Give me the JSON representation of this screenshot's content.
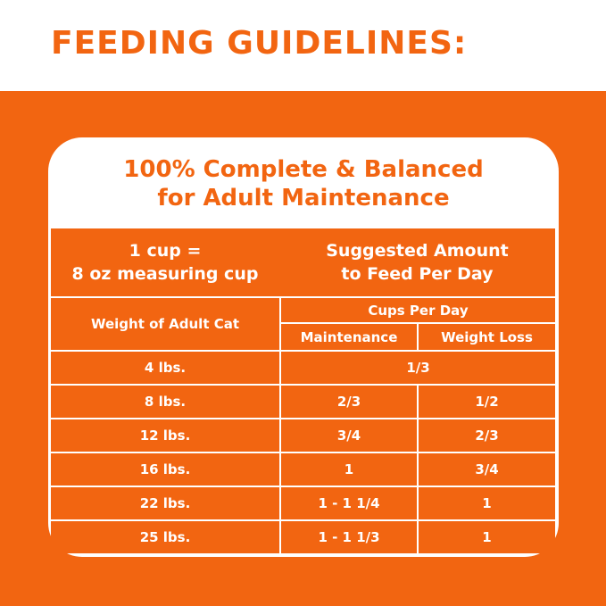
{
  "title": "FEEDING GUIDELINES:",
  "subtitle": {
    "line1": "100% Complete & Balanced",
    "line2": "for Adult Maintenance"
  },
  "header": {
    "cup_line1": "1 cup =",
    "cup_line2": "8 oz measuring cup",
    "amount_line1": "Suggested Amount",
    "amount_line2": "to Feed Per Day",
    "weight": "Weight of Adult Cat",
    "cups_per_day": "Cups Per Day",
    "maintenance": "Maintenance",
    "weight_loss": "Weight Loss"
  },
  "rows": [
    {
      "weight": "4 lbs.",
      "maintenance": "1/3",
      "weight_loss": ""
    },
    {
      "weight": "8 lbs.",
      "maintenance": "2/3",
      "weight_loss": "1/2"
    },
    {
      "weight": "12 lbs.",
      "maintenance": "3/4",
      "weight_loss": "2/3"
    },
    {
      "weight": "16 lbs.",
      "maintenance": "1",
      "weight_loss": "3/4"
    },
    {
      "weight": "22 lbs.",
      "maintenance": "1 - 1 1/4",
      "weight_loss": "1"
    },
    {
      "weight": "25 lbs.",
      "maintenance": "1 - 1 1/3",
      "weight_loss": "1"
    }
  ],
  "colors": {
    "brand": "#f26511",
    "background": "#ffffff"
  }
}
